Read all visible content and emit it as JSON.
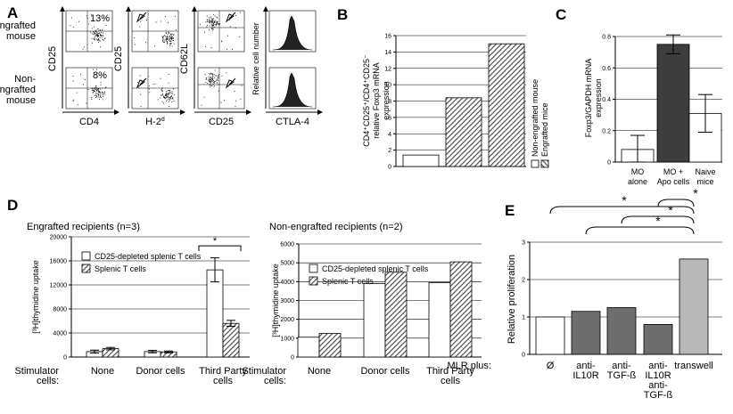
{
  "panels": {
    "A": {
      "label": "A",
      "row_labels": [
        "Engrafted\nmouse",
        "Non-\nengrafted\nmouse"
      ],
      "col_xlabels": [
        "CD4",
        "H-2",
        "CD25",
        "CTLA-4"
      ],
      "h2_superscript": "d",
      "col_ylabels": [
        "CD25",
        "CD25",
        "CD62L",
        "Relative cell number"
      ],
      "pct": [
        "13%",
        "8%"
      ]
    },
    "B": {
      "label": "B"
    },
    "C": {
      "label": "C"
    },
    "D": {
      "label": "D"
    },
    "E": {
      "label": "E"
    }
  },
  "chart_data": [
    {
      "id": "B",
      "type": "bar",
      "ylabel": "CD4⁺CD25⁺/CD4⁺CD25⁻ relative Foxp3 mRNA expression",
      "ylim": [
        0,
        16
      ],
      "ticks": [
        0,
        2,
        4,
        6,
        8,
        10,
        12,
        14,
        16
      ],
      "bars": [
        {
          "series": "Non-engrafted mouse",
          "value": 1.4,
          "fill": "white"
        },
        {
          "series": "Engrafted mice",
          "value": 8.4,
          "fill": "hatch"
        },
        {
          "series": "Engrafted mice",
          "value": 15.0,
          "fill": "hatch"
        }
      ],
      "legend": [
        "Non-engrafted mouse",
        "Engrafted mice"
      ],
      "grid": true
    },
    {
      "id": "C",
      "type": "bar",
      "ylabel": "Foxp3/GAPDH mRNA expression",
      "ylim": [
        0,
        0.8
      ],
      "ticks": [
        0,
        0.2,
        0.4,
        0.6,
        0.8
      ],
      "categories": [
        "MO\nalone",
        "MO +\nApo cells",
        "Naive\nmice"
      ],
      "values": [
        0.08,
        0.75,
        0.31
      ],
      "errors": [
        0.09,
        0.06,
        0.12
      ],
      "fills": [
        "white",
        "#3d3d3d",
        "white"
      ],
      "grid": true
    },
    {
      "id": "D1",
      "type": "bar",
      "title": "Engrafted recipients (n=3)",
      "ylabel": "[³H]thymidine uptake",
      "ylim": [
        0,
        20000
      ],
      "ticks": [
        0,
        4000,
        8000,
        12000,
        16000,
        20000
      ],
      "xprefix": "Stimulator cells:",
      "categories": [
        "None",
        "Donor cells",
        "Third Party\ncells"
      ],
      "series": [
        {
          "name": "CD25-depleted splenic T cells",
          "values": [
            900,
            900,
            14500
          ],
          "errors": [
            250,
            200,
            2000
          ],
          "fill": "white"
        },
        {
          "name": "Splenic T cells",
          "values": [
            1400,
            850,
            5600
          ],
          "errors": [
            200,
            150,
            500
          ],
          "fill": "hatch"
        }
      ],
      "annotation": "*",
      "grid": true
    },
    {
      "id": "D2",
      "type": "bar",
      "title": "Non-engrafted recipients (n=2)",
      "ylabel": "[³H]thymidine uptake",
      "ylim": [
        0,
        6000
      ],
      "ticks": [
        0,
        1000,
        2000,
        3000,
        4000,
        5000,
        6000
      ],
      "xprefix": "Stimulator cells:",
      "categories": [
        "None",
        "Donor cells",
        "Third Party\ncells"
      ],
      "series": [
        {
          "name": "CD25-depleted splenic T cells",
          "values": [
            1050,
            3900,
            3950
          ],
          "fill": "white"
        },
        {
          "name": "Splenic T cells",
          "values": [
            1250,
            4500,
            5050
          ],
          "fill": "hatch"
        }
      ],
      "grid": true
    },
    {
      "id": "E",
      "type": "bar",
      "ylabel": "Relative proliferation",
      "ylim": [
        0,
        3
      ],
      "ticks": [
        0,
        1,
        2,
        3
      ],
      "xprefix": "MLR plus:",
      "categories": [
        "Ø",
        "anti-\nIL10R",
        "anti-\nTGF-ß",
        "anti-\nIL10R\nanti-\nTGF-ß",
        "transwell"
      ],
      "values": [
        1.0,
        1.15,
        1.25,
        0.8,
        2.55
      ],
      "fills": [
        "white",
        "#6e6e6e",
        "#6e6e6e",
        "#6e6e6e",
        "#b9b9b9"
      ],
      "annotations": [
        "*",
        "*",
        "*",
        "*"
      ],
      "grid": true
    }
  ]
}
